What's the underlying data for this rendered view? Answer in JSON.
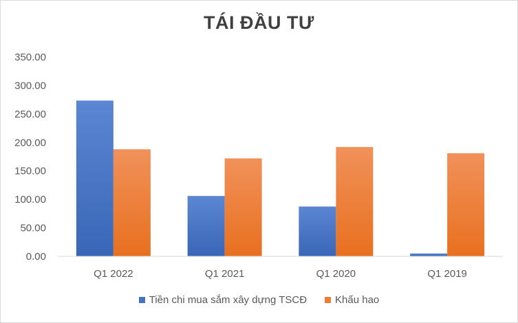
{
  "chart_data": {
    "type": "bar",
    "title": "TÁI ĐẦU TƯ",
    "xlabel": "",
    "ylabel": "",
    "categories": [
      "Q1 2022",
      "Q1 2021",
      "Q1 2020",
      "Q1 2019"
    ],
    "series": [
      {
        "name": "Tiền chi mua sắm xây dựng TSCĐ",
        "color": "#4472c4",
        "values": [
          273.5,
          106.0,
          87.5,
          5.0
        ]
      },
      {
        "name": "Khấu hao",
        "color": "#ed7d31",
        "values": [
          188.0,
          172.0,
          192.0,
          181.0
        ]
      }
    ],
    "ylim": [
      0,
      350
    ],
    "yticks": [
      0,
      50,
      100,
      150,
      200,
      250,
      300,
      350
    ],
    "ytick_labels": [
      "0.00",
      "50.00",
      "100.00",
      "150.00",
      "200.00",
      "250.00",
      "300.00",
      "350.00"
    ],
    "grid": false,
    "legend_position": "bottom"
  }
}
